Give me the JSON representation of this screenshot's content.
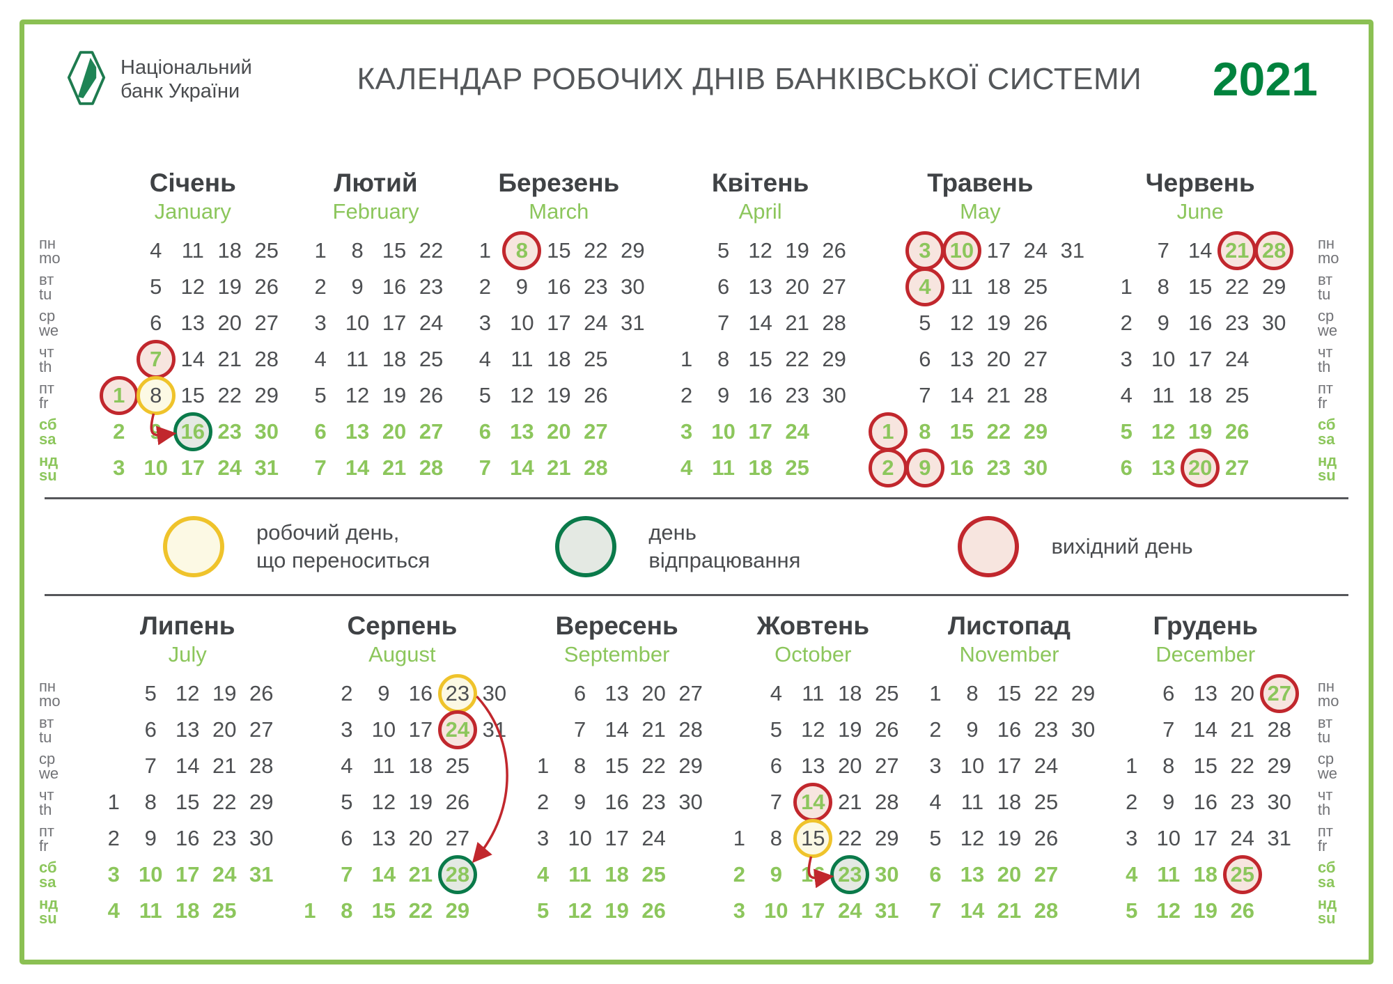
{
  "header": {
    "logo_line1": "Національний",
    "logo_line2": "банк України",
    "title": "КАЛЕНДАР РОБОЧИХ ДНІВ БАНКІВСЬКОЇ СИСТЕМИ",
    "year": "2021"
  },
  "weekdays": [
    {
      "uk": "пн",
      "en": "mo",
      "weekend": false
    },
    {
      "uk": "вт",
      "en": "tu",
      "weekend": false
    },
    {
      "uk": "ср",
      "en": "we",
      "weekend": false
    },
    {
      "uk": "чт",
      "en": "th",
      "weekend": false
    },
    {
      "uk": "пт",
      "en": "fr",
      "weekend": false
    },
    {
      "uk": "сб",
      "en": "sa",
      "weekend": true
    },
    {
      "uk": "нд",
      "en": "su",
      "weekend": true
    }
  ],
  "legend": [
    {
      "type": "yellow",
      "lines": [
        "робочий день,",
        "що переноситься"
      ]
    },
    {
      "type": "green",
      "lines": [
        "день",
        "відпрацювання"
      ]
    },
    {
      "type": "red",
      "lines": [
        "вихідний день"
      ]
    }
  ],
  "colors": {
    "frame_green": "#8BC053",
    "light_green": "#8CC65C",
    "dark_green_year": "#00833E",
    "red_circle": "#C1272D",
    "yellow_circle": "#EFC32B",
    "green_circle": "#0A7A4A",
    "day_gray": "#4D4F52"
  },
  "months": [
    {
      "id": "january",
      "name_uk": "Січень",
      "name_en": "January",
      "half": "top",
      "rows": [
        [
          null,
          4,
          11,
          18,
          25
        ],
        [
          null,
          5,
          12,
          19,
          26
        ],
        [
          null,
          6,
          13,
          20,
          27
        ],
        [
          null,
          7,
          14,
          21,
          28
        ],
        [
          1,
          8,
          15,
          22,
          29
        ],
        [
          2,
          9,
          16,
          23,
          30
        ],
        [
          3,
          10,
          17,
          24,
          31
        ]
      ],
      "marks": {
        "1": "red",
        "7": "red",
        "8": "yellow",
        "16": "green"
      },
      "arrow": {
        "from": 8,
        "to": 16
      }
    },
    {
      "id": "february",
      "name_uk": "Лютий",
      "name_en": "February",
      "half": "top",
      "rows": [
        [
          1,
          8,
          15,
          22
        ],
        [
          2,
          9,
          16,
          23
        ],
        [
          3,
          10,
          17,
          24
        ],
        [
          4,
          11,
          18,
          25
        ],
        [
          5,
          12,
          19,
          26
        ],
        [
          6,
          13,
          20,
          27
        ],
        [
          7,
          14,
          21,
          28
        ]
      ],
      "marks": {}
    },
    {
      "id": "march",
      "name_uk": "Березень",
      "name_en": "March",
      "half": "top",
      "rows": [
        [
          1,
          8,
          15,
          22,
          29
        ],
        [
          2,
          9,
          16,
          23,
          30
        ],
        [
          3,
          10,
          17,
          24,
          31
        ],
        [
          4,
          11,
          18,
          25
        ],
        [
          5,
          12,
          19,
          26
        ],
        [
          6,
          13,
          20,
          27
        ],
        [
          7,
          14,
          21,
          28
        ]
      ],
      "marks": {
        "8": "red"
      }
    },
    {
      "id": "april",
      "name_uk": "Квітень",
      "name_en": "April",
      "half": "top",
      "rows": [
        [
          null,
          5,
          12,
          19,
          26
        ],
        [
          null,
          6,
          13,
          20,
          27
        ],
        [
          null,
          7,
          14,
          21,
          28
        ],
        [
          1,
          8,
          15,
          22,
          29
        ],
        [
          2,
          9,
          16,
          23,
          30
        ],
        [
          3,
          10,
          17,
          24
        ],
        [
          4,
          11,
          18,
          25
        ]
      ],
      "marks": {}
    },
    {
      "id": "may",
      "name_uk": "Травень",
      "name_en": "May",
      "half": "top",
      "rows": [
        [
          null,
          3,
          10,
          17,
          24,
          31
        ],
        [
          null,
          4,
          11,
          18,
          25
        ],
        [
          null,
          5,
          12,
          19,
          26
        ],
        [
          null,
          6,
          13,
          20,
          27
        ],
        [
          null,
          7,
          14,
          21,
          28
        ],
        [
          1,
          8,
          15,
          22,
          29
        ],
        [
          2,
          9,
          16,
          23,
          30
        ]
      ],
      "marks": {
        "1": "red",
        "2": "red",
        "3": "red",
        "4": "red",
        "9": "red",
        "10": "red"
      }
    },
    {
      "id": "june",
      "name_uk": "Червень",
      "name_en": "June",
      "half": "top",
      "rows": [
        [
          null,
          7,
          14,
          21,
          28
        ],
        [
          1,
          8,
          15,
          22,
          29
        ],
        [
          2,
          9,
          16,
          23,
          30
        ],
        [
          3,
          10,
          17,
          24
        ],
        [
          4,
          11,
          18,
          25
        ],
        [
          5,
          12,
          19,
          26
        ],
        [
          6,
          13,
          20,
          27
        ]
      ],
      "marks": {
        "20": "red",
        "21": "red",
        "28": "red"
      }
    },
    {
      "id": "july",
      "name_uk": "Липень",
      "name_en": "July",
      "half": "bottom",
      "rows": [
        [
          null,
          5,
          12,
          19,
          26
        ],
        [
          null,
          6,
          13,
          20,
          27
        ],
        [
          null,
          7,
          14,
          21,
          28
        ],
        [
          1,
          8,
          15,
          22,
          29
        ],
        [
          2,
          9,
          16,
          23,
          30
        ],
        [
          3,
          10,
          17,
          24,
          31
        ],
        [
          4,
          11,
          18,
          25
        ]
      ],
      "marks": {}
    },
    {
      "id": "august",
      "name_uk": "Серпень",
      "name_en": "August",
      "half": "bottom",
      "rows": [
        [
          null,
          2,
          9,
          16,
          23,
          30
        ],
        [
          null,
          3,
          10,
          17,
          24,
          31
        ],
        [
          null,
          4,
          11,
          18,
          25
        ],
        [
          null,
          5,
          12,
          19,
          26
        ],
        [
          null,
          6,
          13,
          20,
          27
        ],
        [
          null,
          7,
          14,
          21,
          28
        ],
        [
          1,
          8,
          15,
          22,
          29
        ]
      ],
      "marks": {
        "23": "yellow",
        "24": "red",
        "28": "green"
      },
      "arrow": {
        "from": 23,
        "to": 28
      }
    },
    {
      "id": "september",
      "name_uk": "Вересень",
      "name_en": "September",
      "half": "bottom",
      "rows": [
        [
          null,
          6,
          13,
          20,
          27
        ],
        [
          null,
          7,
          14,
          21,
          28
        ],
        [
          1,
          8,
          15,
          22,
          29
        ],
        [
          2,
          9,
          16,
          23,
          30
        ],
        [
          3,
          10,
          17,
          24
        ],
        [
          4,
          11,
          18,
          25
        ],
        [
          5,
          12,
          19,
          26
        ]
      ],
      "marks": {}
    },
    {
      "id": "october",
      "name_uk": "Жовтень",
      "name_en": "October",
      "half": "bottom",
      "rows": [
        [
          null,
          4,
          11,
          18,
          25
        ],
        [
          null,
          5,
          12,
          19,
          26
        ],
        [
          null,
          6,
          13,
          20,
          27
        ],
        [
          null,
          7,
          14,
          21,
          28
        ],
        [
          1,
          8,
          15,
          22,
          29
        ],
        [
          2,
          9,
          16,
          23,
          30
        ],
        [
          3,
          10,
          17,
          24,
          31
        ]
      ],
      "marks": {
        "14": "red",
        "15": "yellow",
        "23": "green"
      },
      "arrow": {
        "from": 15,
        "to": 23
      }
    },
    {
      "id": "november",
      "name_uk": "Листопад",
      "name_en": "November",
      "half": "bottom",
      "rows": [
        [
          1,
          8,
          15,
          22,
          29
        ],
        [
          2,
          9,
          16,
          23,
          30
        ],
        [
          3,
          10,
          17,
          24
        ],
        [
          4,
          11,
          18,
          25
        ],
        [
          5,
          12,
          19,
          26
        ],
        [
          6,
          13,
          20,
          27
        ],
        [
          7,
          14,
          21,
          28
        ]
      ],
      "marks": {}
    },
    {
      "id": "december",
      "name_uk": "Грудень",
      "name_en": "December",
      "half": "bottom",
      "rows": [
        [
          null,
          6,
          13,
          20,
          27
        ],
        [
          null,
          7,
          14,
          21,
          28
        ],
        [
          1,
          8,
          15,
          22,
          29
        ],
        [
          2,
          9,
          16,
          23,
          30
        ],
        [
          3,
          10,
          17,
          24,
          31
        ],
        [
          4,
          11,
          18,
          25
        ],
        [
          5,
          12,
          19,
          26
        ]
      ],
      "marks": {
        "25": "red",
        "27": "red"
      }
    }
  ]
}
